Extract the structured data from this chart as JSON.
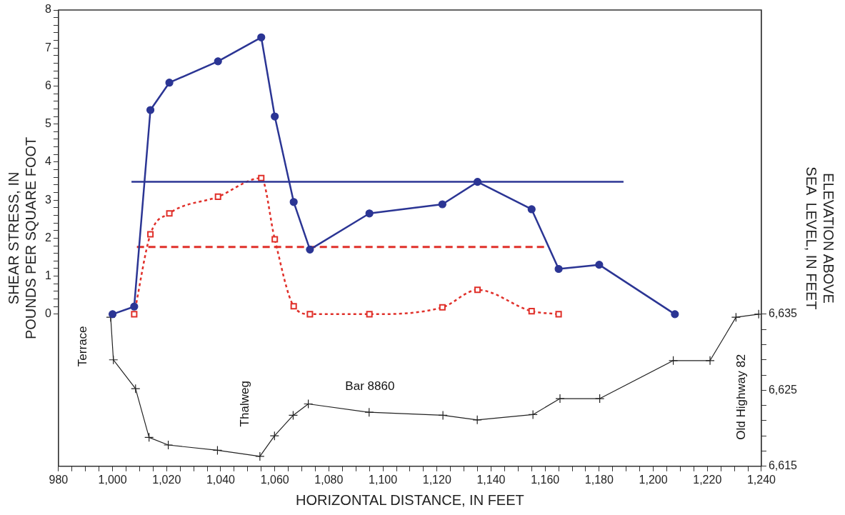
{
  "chart_data": {
    "type": "line",
    "xlabel": "HORIZONTAL DISTANCE, IN FEET",
    "ylabel": "SHEAR STRESS, IN\nPOUNDS PER SQUARE FOOT",
    "y2label": "ELEVATION ABOVE\nSEA  LEVEL, IN FEET",
    "xlim": [
      980,
      1240
    ],
    "xticks": [
      980,
      {
        "value": 985,
        "label": null
      },
      {
        "value": 990,
        "label": null
      },
      {
        "value": 995,
        "label": null
      },
      {
        "value": 1000,
        "label": "1,000"
      },
      {
        "value": 1005,
        "label": null
      },
      {
        "value": 1010,
        "label": null
      },
      {
        "value": 1015,
        "label": null
      },
      {
        "value": 1020,
        "label": "1,020"
      },
      {
        "value": 1025,
        "label": null
      },
      {
        "value": 1030,
        "label": null
      },
      {
        "value": 1035,
        "label": null
      },
      {
        "value": 1040,
        "label": "1,040"
      },
      {
        "value": 1045,
        "label": null
      },
      {
        "value": 1050,
        "label": null
      },
      {
        "value": 1055,
        "label": null
      },
      {
        "value": 1060,
        "label": "1,060"
      },
      {
        "value": 1065,
        "label": null
      },
      {
        "value": 1070,
        "label": null
      },
      {
        "value": 1075,
        "label": null
      },
      {
        "value": 1080,
        "label": "1,080"
      },
      {
        "value": 1085,
        "label": null
      },
      {
        "value": 1090,
        "label": null
      },
      {
        "value": 1095,
        "label": null
      },
      {
        "value": 1100,
        "label": "1,100"
      },
      {
        "value": 1105,
        "label": null
      },
      {
        "value": 1110,
        "label": null
      },
      {
        "value": 1115,
        "label": null
      },
      {
        "value": 1120,
        "label": "1,120"
      },
      {
        "value": 1125,
        "label": null
      },
      {
        "value": 1130,
        "label": null
      },
      {
        "value": 1135,
        "label": null
      },
      {
        "value": 1140,
        "label": "1,140"
      },
      {
        "value": 1145,
        "label": null
      },
      {
        "value": 1150,
        "label": null
      },
      {
        "value": 1155,
        "label": null
      },
      {
        "value": 1160,
        "label": "1,160"
      },
      {
        "value": 1165,
        "label": null
      },
      {
        "value": 1170,
        "label": null
      },
      {
        "value": 1175,
        "label": null
      },
      {
        "value": 1180,
        "label": "1,180"
      },
      {
        "value": 1185,
        "label": null
      },
      {
        "value": 1190,
        "label": null
      },
      {
        "value": 1195,
        "label": null
      },
      {
        "value": 1200,
        "label": "1,200"
      },
      {
        "value": 1205,
        "label": null
      },
      {
        "value": 1210,
        "label": null
      },
      {
        "value": 1215,
        "label": null
      },
      {
        "value": 1220,
        "label": "1,220"
      },
      {
        "value": 1225,
        "label": null
      },
      {
        "value": 1230,
        "label": null
      },
      {
        "value": 1235,
        "label": null
      },
      {
        "value": 1240,
        "label": "1,240"
      }
    ],
    "ylim": [
      -4,
      8
    ],
    "yticks": [
      0,
      {
        "value": 0.2,
        "label": null
      },
      {
        "value": 0.4,
        "label": null
      },
      {
        "value": 0.6,
        "label": null
      },
      {
        "value": 0.8,
        "label": null
      },
      1,
      {
        "value": 1.2,
        "label": null
      },
      {
        "value": 1.4,
        "label": null
      },
      {
        "value": 1.6,
        "label": null
      },
      {
        "value": 1.8,
        "label": null
      },
      2,
      {
        "value": 2.2,
        "label": null
      },
      {
        "value": 2.4,
        "label": null
      },
      {
        "value": 2.6,
        "label": null
      },
      {
        "value": 2.8,
        "label": null
      },
      3,
      {
        "value": 3.2,
        "label": null
      },
      {
        "value": 3.4,
        "label": null
      },
      {
        "value": 3.6,
        "label": null
      },
      {
        "value": 3.8,
        "label": null
      },
      4,
      {
        "value": 4.2,
        "label": null
      },
      {
        "value": 4.4,
        "label": null
      },
      {
        "value": 4.6,
        "label": null
      },
      {
        "value": 4.8,
        "label": null
      },
      5,
      {
        "value": 5.2,
        "label": null
      },
      {
        "value": 5.4,
        "label": null
      },
      {
        "value": 5.6,
        "label": null
      },
      {
        "value": 5.8,
        "label": null
      },
      6,
      {
        "value": 6.2,
        "label": null
      },
      {
        "value": 6.4,
        "label": null
      },
      {
        "value": 6.6,
        "label": null
      },
      {
        "value": 6.8,
        "label": null
      },
      7,
      {
        "value": 7.2,
        "label": null
      },
      {
        "value": 7.4,
        "label": null
      },
      {
        "value": 7.6,
        "label": null
      },
      {
        "value": 7.8,
        "label": null
      },
      8
    ],
    "y2lim": [
      6615,
      6675
    ],
    "y2ticks": [
      {
        "value": 6615,
        "label": "6,615"
      },
      {
        "value": 6617,
        "label": null
      },
      {
        "value": 6619,
        "label": null
      },
      {
        "value": 6621,
        "label": null
      },
      {
        "value": 6623,
        "label": null
      },
      {
        "value": 6625,
        "label": "6,625"
      },
      {
        "value": 6627,
        "label": null
      },
      {
        "value": 6629,
        "label": null
      },
      {
        "value": 6631,
        "label": null
      },
      {
        "value": 6633,
        "label": null
      },
      {
        "value": 6635,
        "label": "6,635"
      }
    ],
    "grid": false,
    "legend": false,
    "series": [
      {
        "color": "#2b3594",
        "marker": "circle",
        "line_style": "solid",
        "x": [
          1000,
          1008,
          1014,
          1021,
          1039,
          1055,
          1060,
          1067,
          1073,
          1095,
          1122,
          1135,
          1155,
          1165,
          1180,
          1208
        ],
        "values": [
          0,
          0.2,
          5.37,
          6.09,
          6.65,
          7.28,
          5.2,
          2.95,
          1.7,
          2.65,
          2.89,
          3.48,
          2.76,
          1.19,
          1.3,
          0
        ]
      },
      {
        "color": "#2b3594",
        "marker": "none",
        "line_style": "solid",
        "x": [
          1007,
          1189
        ],
        "values": [
          3.48,
          3.48
        ]
      },
      {
        "color": "#e0302a",
        "marker": "square",
        "line_style": "dotted",
        "x": [
          1008,
          1014,
          1021,
          1039,
          1055,
          1060,
          1067,
          1073,
          1095,
          1122,
          1135,
          1155,
          1165
        ],
        "values": [
          0,
          2.1,
          2.65,
          3.09,
          3.58,
          1.97,
          0.21,
          0,
          0,
          0.18,
          0.64,
          0.08,
          0
        ]
      },
      {
        "color": "#e0302a",
        "marker": "none",
        "line_style": "dashed",
        "x": [
          1009,
          1161
        ],
        "values": [
          1.77,
          1.77
        ]
      },
      {
        "color": "#222222",
        "marker": "cross",
        "line_style": "solid",
        "axis": "y2",
        "x": [
          999.3,
          1000.3,
          1008.5,
          1013.5,
          1020.6,
          1038.8,
          1054.5,
          1059.9,
          1066.8,
          1072.4,
          1094.9,
          1122.2,
          1134.9,
          1155.5,
          1165.5,
          1180.2,
          1207.4,
          1221,
          1230.6,
          1239
        ],
        "values": [
          6634.6,
          6629,
          6625.2,
          6618.8,
          6617.8,
          6617.1,
          6616.3,
          6619,
          6621.7,
          6623.2,
          6622.1,
          6621.7,
          6621.1,
          6621.8,
          6623.9,
          6623.9,
          6628.9,
          6628.9,
          6634.6,
          6635
        ]
      }
    ],
    "annotations": [
      "Terrace",
      "Thalweg",
      "Bar 8860",
      "Old Highway 82"
    ]
  }
}
